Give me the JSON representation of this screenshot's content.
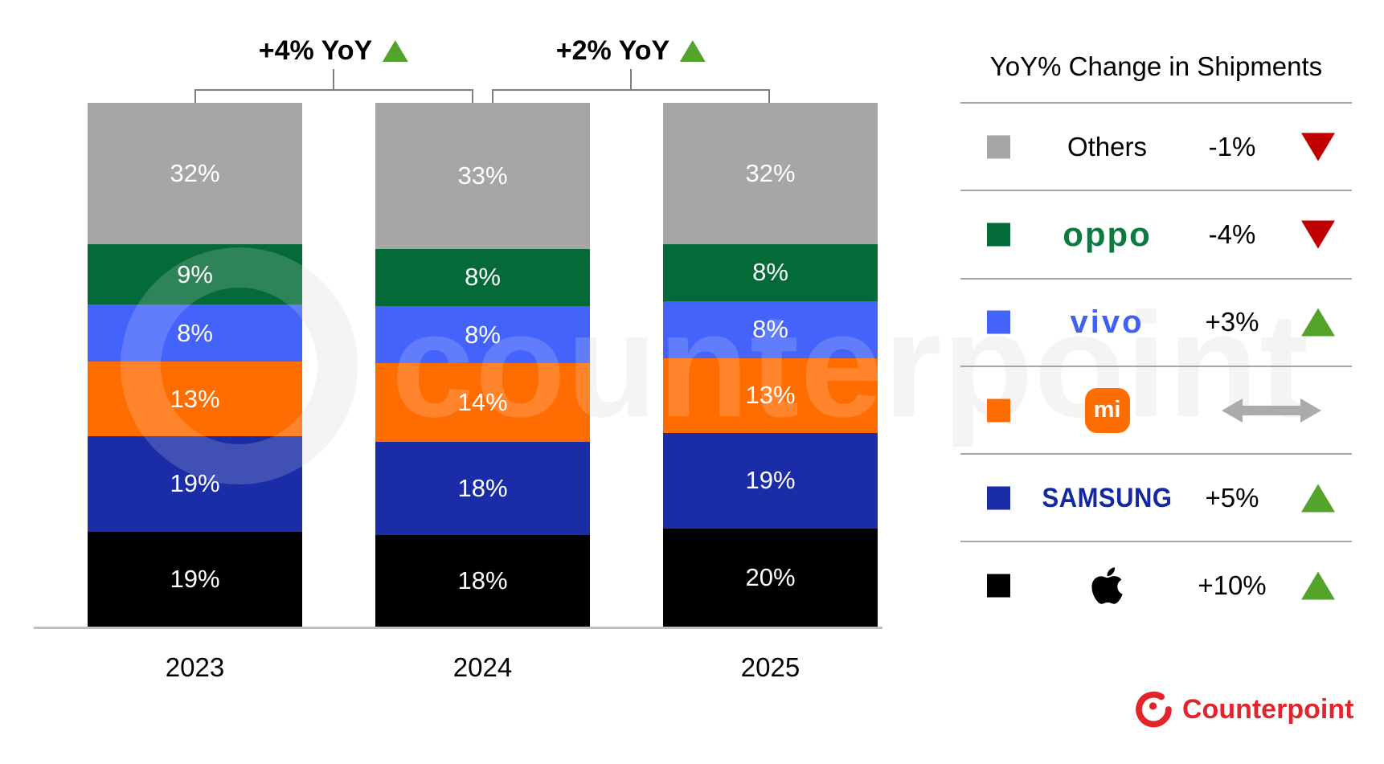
{
  "chart_data": {
    "type": "bar",
    "subtype": "stacked-100",
    "title": "",
    "categories": [
      "2023",
      "2024",
      "2025"
    ],
    "value_unit": "%",
    "stack_order": "series listed top-to-bottom as drawn in each bar",
    "series": [
      {
        "name": "Others",
        "color": "#a6a6a6",
        "values": [
          32,
          33,
          32
        ]
      },
      {
        "name": "OPPO",
        "color": "#046a38",
        "values": [
          9,
          8,
          8
        ]
      },
      {
        "name": "vivo",
        "color": "#4363fa",
        "values": [
          8,
          8,
          8
        ]
      },
      {
        "name": "Xiaomi",
        "color": "#ff6c00",
        "values": [
          13,
          14,
          13
        ]
      },
      {
        "name": "Samsung",
        "color": "#1b2da6",
        "values": [
          19,
          18,
          19
        ]
      },
      {
        "name": "Apple",
        "color": "#000000",
        "values": [
          19,
          18,
          20
        ]
      }
    ],
    "growth_annotations": [
      {
        "label": "+4% YoY",
        "between": [
          "2023",
          "2024"
        ],
        "direction": "up"
      },
      {
        "label": "+2% YoY",
        "between": [
          "2024",
          "2025"
        ],
        "direction": "up"
      }
    ],
    "legend_position": "right",
    "grid": false,
    "ylim": [
      0,
      100
    ]
  },
  "legend": {
    "title": "YoY% Change in Shipments",
    "rows": [
      {
        "brand": "Others",
        "wordmark": "Others",
        "change": "-1%",
        "trend": "down"
      },
      {
        "brand": "OPPO",
        "wordmark": "oppo",
        "change": "-4%",
        "trend": "down"
      },
      {
        "brand": "vivo",
        "wordmark": "vivo",
        "change": "+3%",
        "trend": "up"
      },
      {
        "brand": "Xiaomi",
        "wordmark": "mi",
        "change": "",
        "trend": "flat"
      },
      {
        "brand": "Samsung",
        "wordmark": "SAMSUNG",
        "change": "+5%",
        "trend": "up"
      },
      {
        "brand": "Apple",
        "wordmark": "",
        "change": "+10%",
        "trend": "up"
      }
    ]
  },
  "watermark": {
    "text": "counterpoint"
  },
  "footer": {
    "brand": "Counterpoint"
  },
  "colors": {
    "trend_up": "#54a32b",
    "trend_down": "#c00000",
    "trend_flat_arrow": "#ababab",
    "axis_line": "#bfbfbf",
    "bracket": "#7f7f7f",
    "legend_separator": "#a6a6a6",
    "counterpoint_red": "#e1252b",
    "bar_label_text": "#ffffff"
  }
}
